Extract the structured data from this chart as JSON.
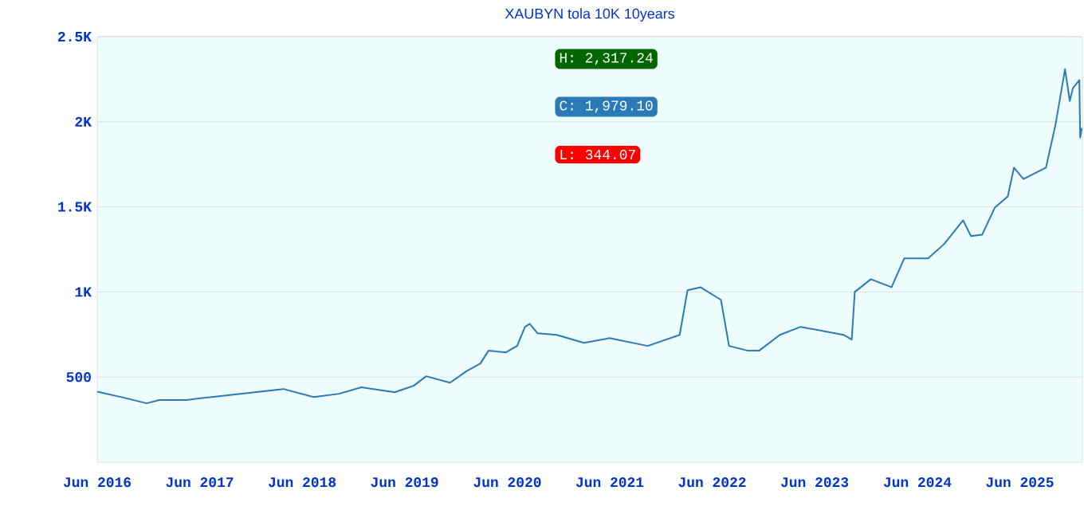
{
  "chart_data": {
    "type": "line",
    "title": "XAUBYN tola 10K 10years",
    "x": [
      "2016-06-01",
      "2016-09-17",
      "2016-11-24",
      "2017-01-08",
      "2017-04-14",
      "2017-07-14",
      "2017-12-14",
      "2018-03-26",
      "2018-07-12",
      "2018-10-11",
      "2018-12-29",
      "2019-04-27",
      "2019-07-03",
      "2019-08-17",
      "2019-11-10",
      "2020-01-06",
      "2020-02-26",
      "2020-03-26",
      "2020-05-27",
      "2020-07-06",
      "2020-08-03",
      "2020-08-20",
      "2020-09-17",
      "2020-11-24",
      "2021-03-01",
      "2021-05-31",
      "2021-10-14",
      "2022-02-05",
      "2022-03-05",
      "2022-04-20",
      "2022-07-02",
      "2022-07-31",
      "2022-10-07",
      "2022-11-15",
      "2023-01-28",
      "2023-04-12",
      "2023-09-12",
      "2023-10-11",
      "2023-10-22",
      "2023-12-18",
      "2024-03-01",
      "2024-04-15",
      "2024-07-09",
      "2024-09-04",
      "2024-11-11",
      "2024-12-09",
      "2025-01-18",
      "2025-03-04",
      "2025-04-19",
      "2025-05-11",
      "2025-06-14",
      "2025-09-02",
      "2025-10-06",
      "2025-11-09",
      "2025-11-26",
      "2025-12-07",
      "2025-12-30",
      "2026-01-02",
      "2026-01-08"
    ],
    "series": [
      {
        "color": "#2a7ab8",
        "values": [
          415,
          374,
          346,
          365,
          365,
          383,
          411,
          430,
          383,
          402,
          440,
          411,
          449,
          505,
          467,
          533,
          580,
          655,
          645,
          683,
          795,
          813,
          757,
          748,
          701,
          729,
          683,
          748,
          1010,
          1028,
          954,
          683,
          655,
          655,
          748,
          795,
          748,
          720,
          1000,
          1075,
          1028,
          1197,
          1197,
          1281,
          1421,
          1328,
          1337,
          1496,
          1561,
          1730,
          1664,
          1730,
          1982,
          2309,
          2122,
          2197,
          2244,
          1907,
          1963
        ]
      }
    ],
    "xlim": [
      "2016-06-01",
      "2026-01-10"
    ],
    "xticks": [
      {
        "value": "2016-06-01",
        "label": "Jun 2016"
      },
      {
        "value": "2017-06-01",
        "label": "Jun 2017"
      },
      {
        "value": "2018-06-01",
        "label": "Jun 2018"
      },
      {
        "value": "2019-06-01",
        "label": "Jun 2019"
      },
      {
        "value": "2020-06-01",
        "label": "Jun 2020"
      },
      {
        "value": "2021-06-01",
        "label": "Jun 2021"
      },
      {
        "value": "2022-06-01",
        "label": "Jun 2022"
      },
      {
        "value": "2023-06-01",
        "label": "Jun 2023"
      },
      {
        "value": "2024-06-01",
        "label": "Jun 2024"
      },
      {
        "value": "2025-06-01",
        "label": "Jun 2025"
      }
    ],
    "ylim": [
      0,
      2500
    ],
    "yticks": [
      500,
      {
        "value": 1000,
        "label": "1K"
      },
      {
        "value": 1500,
        "label": "1.5K"
      },
      {
        "value": 2000,
        "label": "2K"
      },
      {
        "value": 2500,
        "label": "2.5K"
      }
    ],
    "grid": "y",
    "annotations": [
      "H: 2,317.24",
      "C: 1,979.10",
      "L: 344.07"
    ]
  }
}
